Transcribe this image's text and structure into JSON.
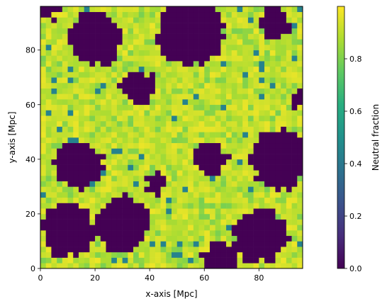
{
  "chart_data": {
    "type": "heatmap",
    "title": "",
    "xlabel": "x-axis [Mpc]",
    "ylabel": "y-axis [Mpc]",
    "xlim": [
      0,
      96
    ],
    "ylim": [
      0,
      96
    ],
    "grid": false,
    "xticks": [
      0,
      20,
      40,
      60,
      80
    ],
    "yticks": [
      0,
      20,
      40,
      60,
      80
    ],
    "colormap": "viridis",
    "colorbar": {
      "label": "Neutral fraction",
      "range": [
        0.0,
        1.0
      ],
      "ticks": [
        "0.0",
        "0.2",
        "0.4",
        "0.6",
        "0.8"
      ],
      "tick_values": [
        0.0,
        0.2,
        0.4,
        0.6,
        0.8
      ]
    },
    "grid_size": [
      48,
      48
    ],
    "field_description": "2D slice of neutral hydrogen fraction; ionized bubbles (0.0) shown dark purple, neutral regions (~0.9-1.0) yellow-green",
    "ionized_regions": [
      {
        "cx": 14,
        "cy": 38,
        "r": 9
      },
      {
        "cx": 30,
        "cy": 16,
        "r": 10
      },
      {
        "cx": 55,
        "cy": 86,
        "r": 12
      },
      {
        "cx": 88,
        "cy": 40,
        "r": 11
      },
      {
        "cx": 80,
        "cy": 12,
        "r": 10
      },
      {
        "cx": 20,
        "cy": 84,
        "r": 10
      },
      {
        "cx": 86,
        "cy": 90,
        "r": 6
      },
      {
        "cx": 62,
        "cy": 40,
        "r": 6
      },
      {
        "cx": 42,
        "cy": 31,
        "r": 4
      },
      {
        "cx": 10,
        "cy": 14,
        "r": 10
      },
      {
        "cx": 66,
        "cy": 4,
        "r": 6
      },
      {
        "cx": 36,
        "cy": 66,
        "r": 6
      },
      {
        "cx": 2,
        "cy": 96,
        "r": 5
      },
      {
        "cx": 96,
        "cy": 62,
        "r": 4
      }
    ],
    "neutral_islands": [
      {
        "cx": 32,
        "cy": 82,
        "r": 3
      },
      {
        "cx": 90,
        "cy": 4,
        "r": 3
      },
      {
        "cx": 2,
        "cy": 2,
        "r": 3
      }
    ]
  }
}
